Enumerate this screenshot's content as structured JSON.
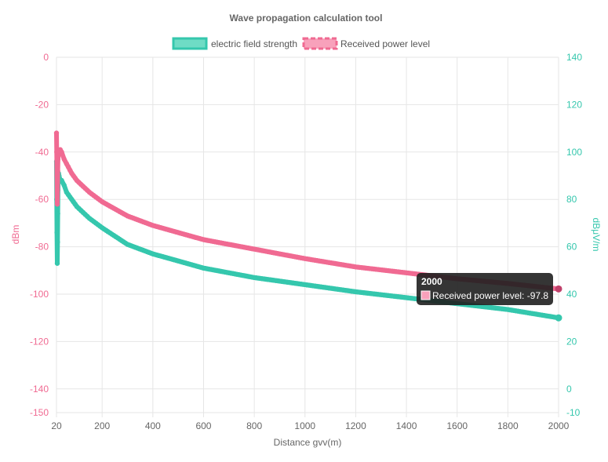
{
  "chart_data": {
    "type": "line",
    "title": "Wave propagation calculation tool",
    "xlabel": "Distance gvv(m)",
    "ylabel_left": "dBm",
    "ylabel_right": "dBμV/m",
    "x_range": [
      20,
      2000
    ],
    "x_ticks": [
      20,
      200,
      400,
      600,
      800,
      1000,
      1200,
      1400,
      1600,
      1800,
      2000
    ],
    "y_left_range": [
      -150,
      0
    ],
    "y_left_ticks": [
      0,
      -20,
      -40,
      -60,
      -80,
      -100,
      -120,
      -140,
      -150
    ],
    "y_right_range": [
      -10,
      140
    ],
    "y_right_ticks": [
      140,
      120,
      100,
      80,
      60,
      40,
      20,
      0,
      -10
    ],
    "grid": true,
    "legend_position": "top",
    "series": [
      {
        "name": "electric field strength",
        "axis": "right",
        "color": "#35c7ad",
        "points": [
          [
            20,
            96
          ],
          [
            21,
            80
          ],
          [
            22,
            66
          ],
          [
            23,
            53
          ],
          [
            24,
            62
          ],
          [
            25,
            74
          ],
          [
            26,
            84
          ],
          [
            28,
            91
          ],
          [
            30,
            90
          ],
          [
            35,
            88
          ],
          [
            40,
            88
          ],
          [
            50,
            86
          ],
          [
            60,
            83
          ],
          [
            80,
            80
          ],
          [
            100,
            77
          ],
          [
            150,
            72
          ],
          [
            200,
            68
          ],
          [
            300,
            61
          ],
          [
            400,
            57
          ],
          [
            500,
            54
          ],
          [
            600,
            51
          ],
          [
            700,
            49
          ],
          [
            800,
            47
          ],
          [
            900,
            45.5
          ],
          [
            1000,
            44
          ],
          [
            1200,
            41
          ],
          [
            1400,
            38.5
          ],
          [
            1600,
            36
          ],
          [
            1800,
            33.5
          ],
          [
            2000,
            30
          ]
        ]
      },
      {
        "name": "Received power level",
        "axis": "left",
        "color": "#f06a92",
        "points": [
          [
            20,
            -32
          ],
          [
            21,
            -40
          ],
          [
            22,
            -50
          ],
          [
            23,
            -62
          ],
          [
            24,
            -56
          ],
          [
            25,
            -48
          ],
          [
            26,
            -43
          ],
          [
            28,
            -40
          ],
          [
            30,
            -39.5
          ],
          [
            35,
            -39
          ],
          [
            40,
            -40
          ],
          [
            50,
            -43
          ],
          [
            60,
            -45
          ],
          [
            80,
            -49
          ],
          [
            100,
            -52
          ],
          [
            150,
            -57
          ],
          [
            200,
            -61
          ],
          [
            300,
            -67
          ],
          [
            400,
            -71
          ],
          [
            500,
            -74
          ],
          [
            600,
            -77
          ],
          [
            700,
            -79
          ],
          [
            800,
            -81
          ],
          [
            900,
            -83
          ],
          [
            1000,
            -85
          ],
          [
            1200,
            -88.5
          ],
          [
            1400,
            -91
          ],
          [
            1600,
            -93.5
          ],
          [
            1800,
            -95.5
          ],
          [
            2000,
            -97.8
          ]
        ]
      }
    ],
    "tooltip": {
      "title": "2000",
      "label": "Received power level: -97.8",
      "color": "#f06a92"
    }
  }
}
